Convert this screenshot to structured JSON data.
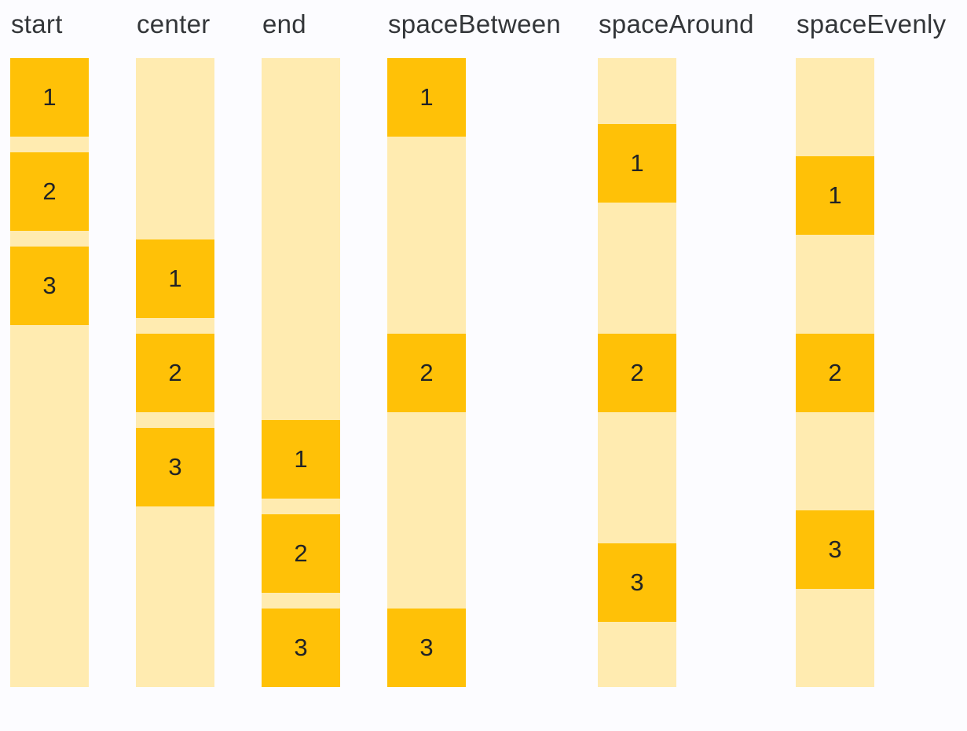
{
  "columns": [
    {
      "label": "start",
      "boxes": [
        "1",
        "2",
        "3"
      ]
    },
    {
      "label": "center",
      "boxes": [
        "1",
        "2",
        "3"
      ]
    },
    {
      "label": "end",
      "boxes": [
        "1",
        "2",
        "3"
      ]
    },
    {
      "label": "spaceBetween",
      "boxes": [
        "1",
        "2",
        "3"
      ]
    },
    {
      "label": "spaceAround",
      "boxes": [
        "1",
        "2",
        "3"
      ]
    },
    {
      "label": "spaceEvenly",
      "boxes": [
        "1",
        "2",
        "3"
      ]
    }
  ],
  "colors": {
    "box": "#FFC107",
    "track": "#FFEBB0",
    "label_text": "#333639",
    "digit_text": "#212326",
    "background": "#FCFCFF"
  }
}
